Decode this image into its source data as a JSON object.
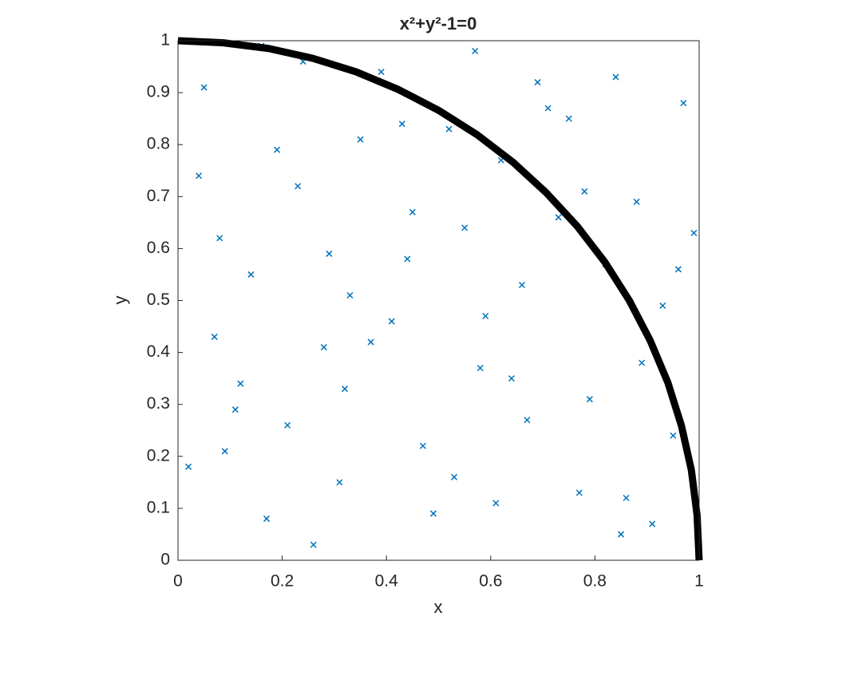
{
  "chart_data": {
    "type": "scatter-line",
    "title": "x²+y²-1=0",
    "x_label": "x",
    "y_label": "y",
    "xlim": [
      0,
      1
    ],
    "ylim": [
      0,
      1
    ],
    "xticks": [
      0,
      0.2,
      0.4,
      0.6,
      0.8,
      1
    ],
    "yticks": [
      0,
      0.1,
      0.2,
      0.3,
      0.4,
      0.5,
      0.6,
      0.7,
      0.8,
      0.9,
      1
    ],
    "grid": false,
    "series": [
      {
        "type": "scatter",
        "color": "#0072bd",
        "x": [
          0.05,
          0.12,
          0.23,
          0.31,
          0.44,
          0.52,
          0.67,
          0.73,
          0.85,
          0.93,
          0.08,
          0.17,
          0.28,
          0.39,
          0.47,
          0.58,
          0.62,
          0.77,
          0.88,
          0.97,
          0.02,
          0.14,
          0.26,
          0.35,
          0.41,
          0.55,
          0.69,
          0.79,
          0.82,
          0.95,
          0.07,
          0.19,
          0.21,
          0.33,
          0.49,
          0.57,
          0.64,
          0.71,
          0.86,
          0.99,
          0.04,
          0.11,
          0.24,
          0.37,
          0.45,
          0.53,
          0.66,
          0.75,
          0.89,
          0.91,
          0.09,
          0.16,
          0.29,
          0.32,
          0.43,
          0.59,
          0.61,
          0.78,
          0.84,
          0.96
        ],
        "values": [
          0.91,
          0.34,
          0.72,
          0.15,
          0.58,
          0.83,
          0.27,
          0.66,
          0.05,
          0.49,
          0.62,
          0.08,
          0.41,
          0.94,
          0.22,
          0.37,
          0.77,
          0.13,
          0.69,
          0.88,
          0.18,
          0.55,
          0.03,
          0.81,
          0.46,
          0.64,
          0.92,
          0.31,
          0.57,
          0.24,
          0.43,
          0.79,
          0.26,
          0.51,
          0.09,
          0.98,
          0.35,
          0.87,
          0.12,
          0.63,
          0.74,
          0.29,
          0.96,
          0.42,
          0.67,
          0.16,
          0.53,
          0.85,
          0.38,
          0.07,
          0.21,
          0.99,
          0.59,
          0.33,
          0.84,
          0.47,
          0.11,
          0.71,
          0.93,
          0.56
        ]
      },
      {
        "type": "line",
        "color": "#000000",
        "x": [
          0,
          0.087,
          0.174,
          0.259,
          0.342,
          0.423,
          0.5,
          0.574,
          0.643,
          0.707,
          0.766,
          0.819,
          0.866,
          0.906,
          0.94,
          0.966,
          0.985,
          0.996,
          1
        ],
        "values": [
          1,
          0.996,
          0.985,
          0.966,
          0.94,
          0.906,
          0.866,
          0.819,
          0.766,
          0.707,
          0.643,
          0.574,
          0.5,
          0.423,
          0.342,
          0.259,
          0.174,
          0.087,
          0
        ]
      }
    ]
  }
}
